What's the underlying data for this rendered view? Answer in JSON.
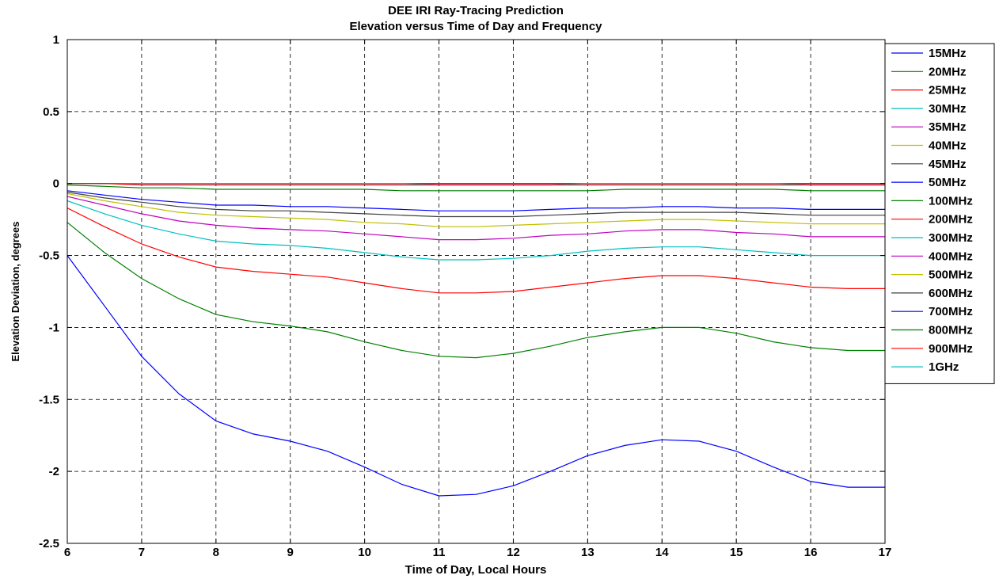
{
  "chart_data": {
    "type": "line",
    "title": "DEE IRI Ray-Tracing Prediction",
    "subtitle": "Elevation versus Time of Day and Frequency",
    "xlabel": "Time of Day, Local Hours",
    "ylabel": "Elevation Deviation, degrees",
    "xlim": [
      6,
      17
    ],
    "ylim": [
      -2.5,
      1
    ],
    "xticks": [
      "6",
      "7",
      "8",
      "9",
      "10",
      "11",
      "12",
      "13",
      "14",
      "15",
      "16",
      "17"
    ],
    "yticks": [
      "1",
      "0.5",
      "0",
      "-0.5",
      "-1",
      "-1.5",
      "-2",
      "-2.5"
    ],
    "grid": true,
    "legend_position": "outside-right-top",
    "x": [
      6,
      6.5,
      7,
      7.5,
      8,
      8.5,
      9,
      9.5,
      10,
      10.5,
      11,
      11.5,
      12,
      12.5,
      13,
      13.5,
      14,
      14.5,
      15,
      15.5,
      16,
      16.5,
      17
    ],
    "series": [
      {
        "name": "15MHz",
        "color": "#0000ff",
        "values": [
          -0.5,
          -0.85,
          -1.2,
          -1.46,
          -1.65,
          -1.74,
          -1.79,
          -1.86,
          -1.97,
          -2.09,
          -2.17,
          -2.16,
          -2.1,
          -2.0,
          -1.89,
          -1.82,
          -1.78,
          -1.79,
          -1.86,
          -1.97,
          -2.07,
          -2.11,
          -2.11
        ]
      },
      {
        "name": "20MHz",
        "color": "#008000",
        "values": [
          -0.27,
          -0.48,
          -0.66,
          -0.8,
          -0.91,
          -0.96,
          -0.99,
          -1.03,
          -1.1,
          -1.16,
          -1.2,
          -1.21,
          -1.18,
          -1.13,
          -1.07,
          -1.03,
          -1.0,
          -1.0,
          -1.04,
          -1.1,
          -1.14,
          -1.16,
          -1.16
        ]
      },
      {
        "name": "25MHz",
        "color": "#ff0000",
        "values": [
          -0.17,
          -0.3,
          -0.42,
          -0.51,
          -0.58,
          -0.61,
          -0.63,
          -0.65,
          -0.69,
          -0.73,
          -0.76,
          -0.76,
          -0.75,
          -0.72,
          -0.69,
          -0.66,
          -0.64,
          -0.64,
          -0.66,
          -0.69,
          -0.72,
          -0.73,
          -0.73
        ]
      },
      {
        "name": "30MHz",
        "color": "#00bfbf",
        "values": [
          -0.12,
          -0.21,
          -0.29,
          -0.35,
          -0.4,
          -0.42,
          -0.43,
          -0.45,
          -0.48,
          -0.51,
          -0.53,
          -0.53,
          -0.52,
          -0.5,
          -0.47,
          -0.45,
          -0.44,
          -0.44,
          -0.46,
          -0.48,
          -0.5,
          -0.5,
          -0.5
        ]
      },
      {
        "name": "35MHz",
        "color": "#bf00bf",
        "values": [
          -0.09,
          -0.15,
          -0.21,
          -0.26,
          -0.29,
          -0.31,
          -0.32,
          -0.33,
          -0.35,
          -0.37,
          -0.39,
          -0.39,
          -0.38,
          -0.36,
          -0.35,
          -0.33,
          -0.32,
          -0.32,
          -0.34,
          -0.35,
          -0.37,
          -0.37,
          -0.37
        ]
      },
      {
        "name": "40MHz",
        "color": "#bfbf00",
        "values": [
          -0.07,
          -0.12,
          -0.16,
          -0.2,
          -0.22,
          -0.23,
          -0.24,
          -0.25,
          -0.27,
          -0.28,
          -0.3,
          -0.3,
          -0.29,
          -0.28,
          -0.27,
          -0.26,
          -0.25,
          -0.25,
          -0.26,
          -0.27,
          -0.28,
          -0.28,
          -0.28
        ]
      },
      {
        "name": "45MHz",
        "color": "#404040",
        "values": [
          -0.06,
          -0.1,
          -0.13,
          -0.16,
          -0.18,
          -0.19,
          -0.19,
          -0.2,
          -0.21,
          -0.22,
          -0.23,
          -0.23,
          -0.23,
          -0.22,
          -0.21,
          -0.2,
          -0.2,
          -0.2,
          -0.2,
          -0.21,
          -0.22,
          -0.22,
          -0.22
        ]
      },
      {
        "name": "50MHz",
        "color": "#0000ff",
        "values": [
          -0.05,
          -0.08,
          -0.11,
          -0.13,
          -0.15,
          -0.15,
          -0.16,
          -0.16,
          -0.17,
          -0.18,
          -0.19,
          -0.19,
          -0.19,
          -0.18,
          -0.17,
          -0.17,
          -0.16,
          -0.16,
          -0.17,
          -0.17,
          -0.18,
          -0.18,
          -0.18
        ]
      },
      {
        "name": "100MHz",
        "color": "#008000",
        "values": [
          -0.01,
          -0.02,
          -0.03,
          -0.03,
          -0.04,
          -0.04,
          -0.04,
          -0.04,
          -0.04,
          -0.05,
          -0.05,
          -0.05,
          -0.05,
          -0.05,
          -0.05,
          -0.04,
          -0.04,
          -0.04,
          -0.04,
          -0.04,
          -0.05,
          -0.05,
          -0.05
        ]
      },
      {
        "name": "200MHz",
        "color": "#ff0000",
        "values": [
          0,
          0,
          -0.01,
          -0.01,
          -0.01,
          -0.01,
          -0.01,
          -0.01,
          -0.01,
          -0.01,
          -0.01,
          -0.01,
          -0.01,
          -0.01,
          -0.01,
          -0.01,
          -0.01,
          -0.01,
          -0.01,
          -0.01,
          -0.01,
          -0.01,
          -0.01
        ]
      },
      {
        "name": "300MHz",
        "color": "#00bfbf",
        "values": [
          0,
          0,
          0,
          0,
          0,
          0,
          0,
          0,
          0,
          0,
          -0.01,
          -0.01,
          -0.01,
          -0.01,
          0,
          0,
          0,
          0,
          0,
          0,
          -0.01,
          -0.01,
          -0.01
        ]
      },
      {
        "name": "400MHz",
        "color": "#bf00bf",
        "values": [
          0,
          0,
          0,
          0,
          0,
          0,
          0,
          0,
          0,
          0,
          0,
          0,
          0,
          0,
          0,
          0,
          0,
          0,
          0,
          0,
          0,
          0,
          0
        ]
      },
      {
        "name": "500MHz",
        "color": "#bfbf00",
        "values": [
          0,
          0,
          0,
          0,
          0,
          0,
          0,
          0,
          0,
          0,
          0,
          0,
          0,
          0,
          0,
          0,
          0,
          0,
          0,
          0,
          0,
          0,
          0
        ]
      },
      {
        "name": "600MHz",
        "color": "#404040",
        "values": [
          0,
          0,
          0,
          0,
          0,
          0,
          0,
          0,
          0,
          0,
          0,
          0,
          0,
          0,
          0,
          0,
          0,
          0,
          0,
          0,
          0,
          0,
          0
        ]
      },
      {
        "name": "700MHz",
        "color": "#0000ff",
        "values": [
          0,
          0,
          0,
          0,
          0,
          0,
          0,
          0,
          0,
          0,
          0,
          0,
          0,
          0,
          0,
          0,
          0,
          0,
          0,
          0,
          0,
          0,
          0
        ]
      },
      {
        "name": "800MHz",
        "color": "#008000",
        "values": [
          0,
          0,
          0,
          0,
          0,
          0,
          0,
          0,
          0,
          0,
          0,
          0,
          0,
          0,
          0,
          0,
          0,
          0,
          0,
          0,
          0,
          0,
          0
        ]
      },
      {
        "name": "900MHz",
        "color": "#ff0000",
        "values": [
          0,
          0,
          0,
          0,
          0,
          0,
          0,
          0,
          0,
          0,
          0,
          0,
          0,
          0,
          0,
          0,
          0,
          0,
          0,
          0,
          0,
          0,
          0
        ]
      },
      {
        "name": "1GHz",
        "color": "#00bfbf",
        "values": [
          0,
          0,
          0,
          0,
          0,
          0,
          0,
          0,
          0,
          0,
          0,
          0,
          0,
          0,
          0,
          0,
          0,
          0,
          0,
          0,
          0,
          0,
          0
        ]
      }
    ]
  }
}
